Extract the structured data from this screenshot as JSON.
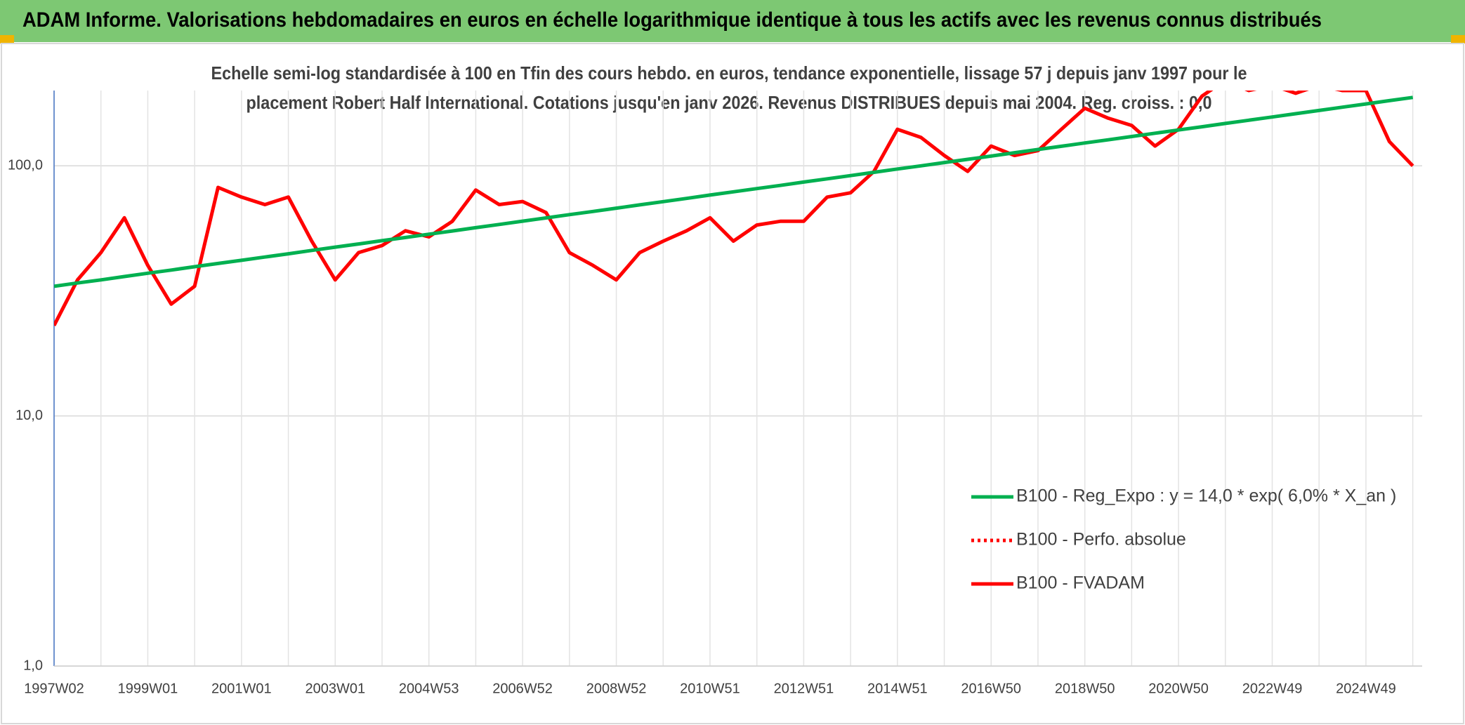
{
  "chart_data": {
    "type": "line",
    "title": "ADAM Informe. Valorisations hebdomadaires en euros en échelle logarithmique identique à tous les actifs avec les revenus connus distribués",
    "subtitle": [
      "Echelle semi-log standardisée à 100 en Tfin des cours hebdo. en euros, tendance exponentielle, lissage 57 j depuis janv 1997 pour le",
      "placement Robert Half International. Cotations jusqu'en janv 2026. Revenus DISTRIBUES depuis mai 2004. Reg. croiss. : 0,0"
    ],
    "categories": [
      "1997W02",
      null,
      null,
      null,
      "1999W01",
      null,
      null,
      null,
      "2001W01",
      null,
      null,
      null,
      "2003W01",
      null,
      null,
      null,
      "2004W53",
      null,
      null,
      null,
      "2006W52",
      null,
      null,
      null,
      "2008W52",
      null,
      null,
      null,
      "2010W51",
      null,
      null,
      null,
      "2012W51",
      null,
      null,
      null,
      "2014W51",
      null,
      null,
      null,
      "2016W50",
      null,
      null,
      null,
      "2018W50",
      null,
      null,
      null,
      "2020W50",
      null,
      null,
      null,
      "2022W49",
      null,
      null,
      null,
      "2024W49",
      null,
      null
    ],
    "series": [
      {
        "name": "B100 - Reg_Expo : y = 14,0 * exp( 6,0% *  X_an )",
        "color": "#00b050",
        "style": "solid",
        "values": [
          33.0,
          34.0,
          35.0,
          36.1,
          37.2,
          38.3,
          39.5,
          40.7,
          41.9,
          43.2,
          44.5,
          45.9,
          47.3,
          48.7,
          50.2,
          51.7,
          53.3,
          54.9,
          56.6,
          58.3,
          60.1,
          61.9,
          63.8,
          65.7,
          67.7,
          69.8,
          71.9,
          74.1,
          76.4,
          78.7,
          81.1,
          83.5,
          86.1,
          88.7,
          91.4,
          94.2,
          97.1,
          100.0,
          103.1,
          106.2,
          109.4,
          112.8,
          116.2,
          119.7,
          123.4,
          127.1,
          131.0,
          135.0,
          139.1,
          143.3,
          147.7,
          152.2,
          156.8,
          161.6,
          166.5,
          171.6,
          176.8,
          182.2,
          187.7
        ]
      },
      {
        "name": "B100 - Perfo. absolue",
        "color": "#ff0000",
        "style": "dotted",
        "values": [
          23,
          35,
          45,
          62,
          40,
          28,
          33,
          82,
          75,
          70,
          75,
          50,
          35,
          45,
          48,
          55,
          52,
          60,
          80,
          70,
          72,
          65,
          45,
          40,
          35,
          45,
          50,
          55,
          62,
          50,
          58,
          60,
          60,
          75,
          78,
          95,
          140,
          130,
          110,
          95,
          120,
          110,
          115,
          140,
          170,
          155,
          145,
          120,
          140,
          190,
          220,
          200,
          210,
          195,
          210,
          200,
          200,
          125,
          100
        ]
      },
      {
        "name": "B100 - FVADAM",
        "color": "#ff0000",
        "style": "solid",
        "values": [
          23,
          35,
          45,
          62,
          40,
          28,
          33,
          82,
          75,
          70,
          75,
          50,
          35,
          45,
          48,
          55,
          52,
          60,
          80,
          70,
          72,
          65,
          45,
          40,
          35,
          45,
          50,
          55,
          62,
          50,
          58,
          60,
          60,
          75,
          78,
          95,
          140,
          130,
          110,
          95,
          120,
          110,
          115,
          140,
          170,
          155,
          145,
          120,
          140,
          190,
          220,
          200,
          210,
          195,
          210,
          200,
          200,
          125,
          100
        ]
      }
    ],
    "ylim": [
      1,
      200
    ],
    "log_y": true,
    "grid": true,
    "yticks": [
      {
        "value": 1,
        "label": "1,0"
      },
      {
        "value": 10,
        "label": "10,0"
      },
      {
        "value": 100,
        "label": "100,0"
      }
    ],
    "legend": "lower right"
  }
}
